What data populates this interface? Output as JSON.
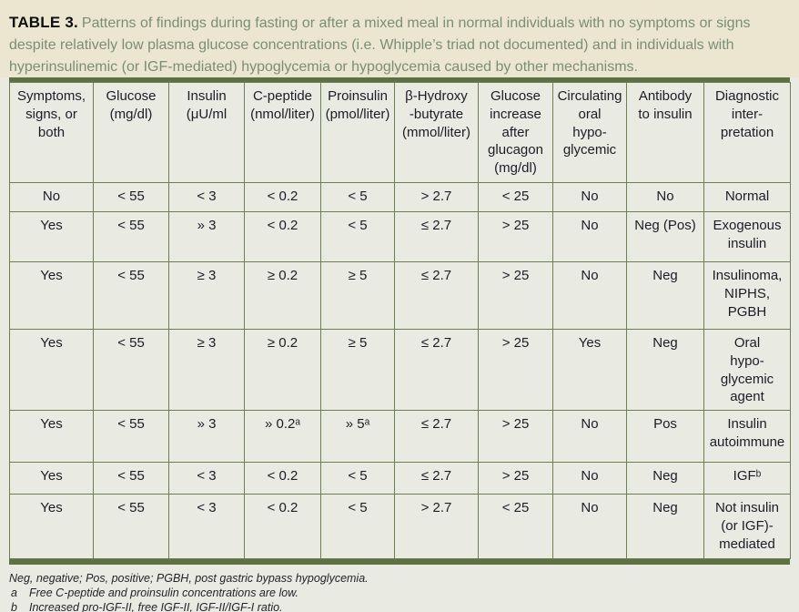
{
  "title": {
    "label": "TABLE 3.",
    "text": "Patterns of findings during fasting or after a mixed meal in normal individuals with no symptoms or signs despite relatively low plasma glucose concentrations (i.e. Whipple’s triad not documented) and in individuals with hyperinsulinemic (or IGF-mediated) hypoglycemia or hypoglycemia caused by other mechanisms."
  },
  "colors": {
    "title_band_bg": "#ece6d1",
    "page_bg": "#e9ebe2",
    "accent_bar": "#5d7244",
    "grid_line": "#6d7f51",
    "title_text": "#7a8e75",
    "body_text": "#1c1c26"
  },
  "table": {
    "headers": [
      "Symptoms,\nsigns, or\nboth",
      "Glucose\n(mg/dl)",
      "Insulin\n(μU/ml",
      "C-peptide\n(nmol/liter)",
      "Proinsulin\n(pmol/liter)",
      "β-Hydroxy\n-butyrate\n(mmol/liter)",
      "Glucose\nincrease\nafter\nglucagon\n(mg/dl)",
      "Circulating\noral\nhypo-\nglycemic",
      "Antibody\nto insulin",
      "Diagnostic\ninter-\npretation"
    ],
    "rows": [
      {
        "cells": [
          "No",
          "< 55",
          "< 3",
          "< 0.2",
          "< 5",
          "> 2.7",
          "< 25",
          "No",
          "No",
          "Normal"
        ]
      },
      {
        "cells": [
          "Yes",
          "< 55",
          "» 3",
          "< 0.2",
          "< 5",
          "≤ 2.7",
          "> 25",
          "No",
          "Neg (Pos)",
          "Exogenous\ninsulin"
        ]
      },
      {
        "cells": [
          "Yes",
          "< 55",
          "≥ 3",
          "≥ 0.2",
          "≥ 5",
          "≤ 2.7",
          "> 25",
          "No",
          "Neg",
          "Insulinoma,\nNIPHS,\nPGBH"
        ]
      },
      {
        "cells": [
          "Yes",
          "< 55",
          "≥ 3",
          "≥ 0.2",
          "≥ 5",
          "≤ 2.7",
          "> 25",
          "Yes",
          "Neg",
          "Oral\nhypo-\nglycemic\nagent"
        ]
      },
      {
        "cells": [
          "Yes",
          "< 55",
          "» 3",
          "» 0.2ᵃ",
          "» 5ᵃ",
          "≤ 2.7",
          "> 25",
          "No",
          "Pos",
          "Insulin\nautoimmune"
        ]
      },
      {
        "cells": [
          "Yes",
          "< 55",
          "< 3",
          "< 0.2",
          "< 5",
          "≤ 2.7",
          "> 25",
          "No",
          "Neg",
          "IGFᵇ"
        ]
      },
      {
        "cells": [
          "Yes",
          "< 55",
          "< 3",
          "< 0.2",
          "< 5",
          "> 2.7",
          "< 25",
          "No",
          "Neg",
          "Not insulin\n(or IGF)-\nmediated"
        ]
      }
    ]
  },
  "footnotes": [
    {
      "marker": "",
      "text": "Neg, negative; Pos, positive; PGBH, post gastric bypass hypoglycemia."
    },
    {
      "marker": "a",
      "text": "Free C-peptide and proinsulin concentrations are low."
    },
    {
      "marker": "b",
      "text": "Increased pro-IGF-II, free IGF-II, IGF-II/IGF-I ratio."
    }
  ]
}
